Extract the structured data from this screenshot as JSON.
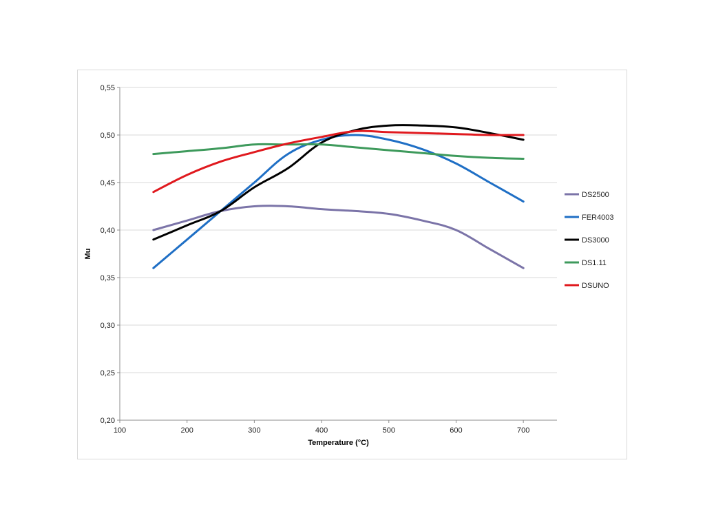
{
  "chart_data": {
    "type": "line",
    "title": "",
    "xlabel": "Temperature (°C)",
    "ylabel": "Mu",
    "xlim": [
      100,
      750
    ],
    "ylim": [
      0.2,
      0.55
    ],
    "xticks": [
      100,
      200,
      300,
      400,
      500,
      600,
      700
    ],
    "xtick_labels": [
      "100",
      "200",
      "300",
      "400",
      "500",
      "600",
      "700"
    ],
    "yticks": [
      0.2,
      0.25,
      0.3,
      0.35,
      0.4,
      0.45,
      0.5,
      0.55
    ],
    "ytick_labels": [
      "0,20",
      "0,25",
      "0,30",
      "0,35",
      "0,40",
      "0,45",
      "0,50",
      "0,55"
    ],
    "grid": "horizontal",
    "legend_position": "right",
    "series": [
      {
        "name": "DS2500",
        "color": "#7b74a8",
        "x": [
          150,
          200,
          250,
          300,
          350,
          400,
          450,
          500,
          550,
          600,
          650,
          700
        ],
        "y": [
          0.4,
          0.41,
          0.42,
          0.425,
          0.425,
          0.422,
          0.42,
          0.417,
          0.41,
          0.4,
          0.38,
          0.36
        ]
      },
      {
        "name": "FER4003",
        "color": "#1f6fc5",
        "x": [
          150,
          200,
          250,
          300,
          350,
          400,
          450,
          500,
          550,
          600,
          650,
          700
        ],
        "y": [
          0.36,
          0.39,
          0.42,
          0.45,
          0.48,
          0.495,
          0.5,
          0.495,
          0.485,
          0.47,
          0.45,
          0.43
        ]
      },
      {
        "name": "DS3000",
        "color": "#000000",
        "x": [
          150,
          200,
          250,
          300,
          350,
          400,
          450,
          500,
          550,
          600,
          650,
          700
        ],
        "y": [
          0.39,
          0.405,
          0.42,
          0.445,
          0.465,
          0.492,
          0.505,
          0.51,
          0.51,
          0.508,
          0.502,
          0.495
        ]
      },
      {
        "name": "DS1.11",
        "color": "#3e9a5c",
        "x": [
          150,
          200,
          250,
          300,
          350,
          400,
          450,
          500,
          550,
          600,
          650,
          700
        ],
        "y": [
          0.48,
          0.483,
          0.486,
          0.49,
          0.49,
          0.49,
          0.487,
          0.484,
          0.481,
          0.478,
          0.476,
          0.475
        ]
      },
      {
        "name": "DSUNO",
        "color": "#e0191e",
        "x": [
          150,
          200,
          250,
          300,
          350,
          400,
          450,
          500,
          550,
          600,
          650,
          700
        ],
        "y": [
          0.44,
          0.458,
          0.472,
          0.482,
          0.491,
          0.498,
          0.504,
          0.503,
          0.502,
          0.501,
          0.5,
          0.5
        ]
      }
    ]
  }
}
